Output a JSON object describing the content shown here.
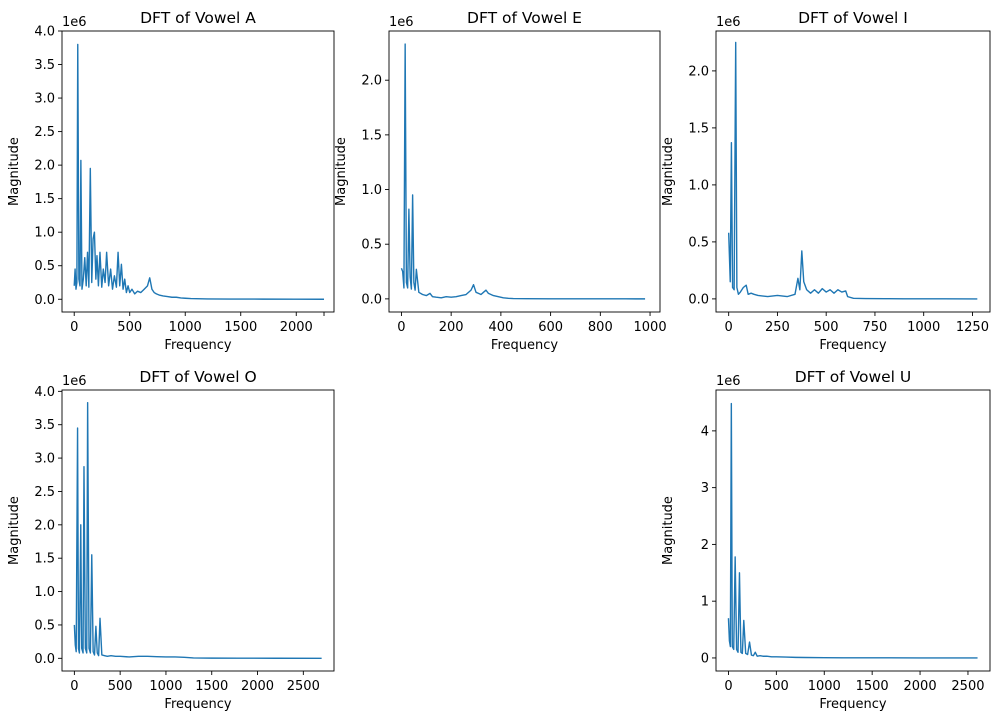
{
  "figure": {
    "background": "#ffffff",
    "line_color": "#1f77b4"
  },
  "chart_data": [
    {
      "type": "line",
      "title": "DFT of Vowel A",
      "xlabel": "Frequency",
      "ylabel": "Magnitude",
      "y_offset_label": "1e6",
      "xlim": [
        -110,
        2340
      ],
      "ylim": [
        -190000,
        4000000
      ],
      "xticks": [
        0,
        500,
        1000,
        1500,
        2000,
        2250
      ],
      "xtick_labels": [
        "0",
        "500",
        "1000",
        "1500",
        "2000",
        ""
      ],
      "yticks": [
        0,
        500000,
        1000000,
        1500000,
        2000000,
        2500000,
        3000000,
        3500000,
        4000000
      ],
      "ytick_labels": [
        "0.0",
        "0.5",
        "1.0",
        "1.5",
        "2.0",
        "2.5",
        "3.0",
        "3.5",
        "4.0"
      ],
      "grid": false,
      "series": [
        {
          "x": [
            0,
            8,
            16,
            24,
            32,
            42,
            52,
            60,
            70,
            82,
            95,
            108,
            120,
            132,
            145,
            158,
            170,
            182,
            195,
            205,
            218,
            232,
            248,
            262,
            278,
            292,
            310,
            328,
            345,
            362,
            380,
            395,
            410,
            425,
            440,
            455,
            470,
            485,
            500,
            520,
            545,
            570,
            600,
            630,
            660,
            680,
            700,
            720,
            740,
            770,
            800,
            840,
            880,
            920,
            960,
            1000,
            1050,
            1100,
            1200,
            1400,
            1700,
            2000,
            2250
          ],
          "y": [
            200000,
            450000,
            150000,
            250000,
            3800000,
            300000,
            200000,
            2070000,
            150000,
            300000,
            620000,
            200000,
            700000,
            180000,
            1950000,
            250000,
            900000,
            1000000,
            300000,
            650000,
            200000,
            700000,
            180000,
            450000,
            250000,
            700000,
            200000,
            450000,
            150000,
            350000,
            180000,
            700000,
            200000,
            520000,
            150000,
            300000,
            100000,
            200000,
            100000,
            150000,
            80000,
            120000,
            100000,
            150000,
            200000,
            320000,
            150000,
            100000,
            80000,
            60000,
            50000,
            40000,
            30000,
            30000,
            20000,
            15000,
            10000,
            8000,
            5000,
            3000,
            2000,
            1000,
            0
          ]
        }
      ]
    },
    {
      "type": "line",
      "title": "DFT of Vowel E",
      "xlabel": "Frequency",
      "ylabel": "Magnitude",
      "y_offset_label": "1e6",
      "xlim": [
        -50,
        1040
      ],
      "ylim": [
        -120000,
        2450000
      ],
      "xticks": [
        0,
        200,
        400,
        600,
        800,
        1000
      ],
      "xtick_labels": [
        "0",
        "200",
        "400",
        "600",
        "800",
        "1000"
      ],
      "yticks": [
        0,
        500000,
        1000000,
        1500000,
        2000000
      ],
      "ytick_labels": [
        "0.0",
        "0.5",
        "1.0",
        "1.5",
        "2.0"
      ],
      "grid": false,
      "series": [
        {
          "x": [
            0,
            5,
            10,
            15,
            20,
            25,
            30,
            35,
            40,
            45,
            50,
            55,
            60,
            70,
            85,
            100,
            115,
            125,
            140,
            160,
            180,
            200,
            220,
            240,
            260,
            280,
            290,
            300,
            310,
            320,
            330,
            340,
            350,
            370,
            390,
            410,
            430,
            450,
            500,
            600,
            700,
            800,
            900,
            980
          ],
          "y": [
            280000,
            250000,
            100000,
            2330000,
            150000,
            100000,
            820000,
            200000,
            90000,
            950000,
            150000,
            80000,
            270000,
            60000,
            40000,
            30000,
            50000,
            20000,
            15000,
            10000,
            20000,
            15000,
            20000,
            30000,
            40000,
            80000,
            130000,
            60000,
            50000,
            40000,
            60000,
            80000,
            50000,
            30000,
            20000,
            10000,
            5000,
            3000,
            2000,
            1000,
            800,
            500,
            200,
            0
          ]
        }
      ]
    },
    {
      "type": "line",
      "title": "DFT of Vowel I",
      "xlabel": "Frequency",
      "ylabel": "Magnitude",
      "y_offset_label": "1e6",
      "xlim": [
        -65,
        1340
      ],
      "ylim": [
        -115000,
        2350000
      ],
      "xticks": [
        0,
        250,
        500,
        750,
        1000,
        1250
      ],
      "xtick_labels": [
        "0",
        "250",
        "500",
        "750",
        "1000",
        "1250"
      ],
      "yticks": [
        0,
        500000,
        1000000,
        1500000,
        2000000
      ],
      "ytick_labels": [
        "0.0",
        "0.5",
        "1.0",
        "1.5",
        "2.0"
      ],
      "grid": false,
      "series": [
        {
          "x": [
            0,
            8,
            14,
            20,
            28,
            36,
            42,
            50,
            60,
            75,
            90,
            100,
            115,
            130,
            150,
            200,
            250,
            300,
            340,
            355,
            365,
            375,
            385,
            400,
            420,
            440,
            460,
            480,
            500,
            520,
            540,
            560,
            580,
            600,
            610,
            640,
            700,
            800,
            900,
            1000,
            1100,
            1275
          ],
          "y": [
            580000,
            150000,
            1370000,
            100000,
            80000,
            2250000,
            100000,
            40000,
            60000,
            100000,
            120000,
            40000,
            50000,
            40000,
            30000,
            20000,
            30000,
            20000,
            40000,
            180000,
            80000,
            420000,
            150000,
            80000,
            50000,
            80000,
            50000,
            90000,
            60000,
            80000,
            50000,
            80000,
            60000,
            70000,
            20000,
            5000,
            3000,
            2000,
            1000,
            800,
            500,
            0
          ]
        }
      ]
    },
    {
      "type": "line",
      "title": "DFT of Vowel O",
      "xlabel": "Frequency",
      "ylabel": "Magnitude",
      "y_offset_label": "1e6",
      "xlim": [
        -135,
        2835
      ],
      "ylim": [
        -190000,
        4020000
      ],
      "xticks": [
        0,
        500,
        1000,
        1500,
        2000,
        2500
      ],
      "xtick_labels": [
        "0",
        "500",
        "1000",
        "1500",
        "2000",
        "2500"
      ],
      "yticks": [
        0,
        500000,
        1000000,
        1500000,
        2000000,
        2500000,
        3000000,
        3500000,
        4000000
      ],
      "ytick_labels": [
        "0.0",
        "0.5",
        "1.0",
        "1.5",
        "2.0",
        "2.5",
        "3.0",
        "3.5",
        "4.0"
      ],
      "grid": false,
      "series": [
        {
          "x": [
            0,
            10,
            20,
            35,
            45,
            55,
            70,
            80,
            95,
            105,
            120,
            135,
            145,
            160,
            175,
            190,
            205,
            220,
            235,
            250,
            265,
            280,
            300,
            330,
            360,
            400,
            450,
            500,
            600,
            700,
            800,
            900,
            1000,
            1100,
            1200,
            1300,
            1500,
            1800,
            2200,
            2700
          ],
          "y": [
            500000,
            200000,
            100000,
            3450000,
            150000,
            80000,
            2000000,
            150000,
            80000,
            2870000,
            150000,
            80000,
            3830000,
            150000,
            80000,
            1550000,
            100000,
            50000,
            480000,
            80000,
            40000,
            600000,
            50000,
            40000,
            30000,
            40000,
            30000,
            30000,
            20000,
            30000,
            30000,
            25000,
            20000,
            20000,
            15000,
            5000,
            3000,
            2000,
            1000,
            0
          ]
        }
      ]
    },
    {
      "type": "line",
      "title": "DFT of Vowel U",
      "xlabel": "Frequency",
      "ylabel": "Magnitude",
      "y_offset_label": "1e6",
      "xlim": [
        -130,
        2730
      ],
      "ylim": [
        -230000,
        4720000
      ],
      "xticks": [
        0,
        500,
        1000,
        1500,
        2000,
        2500
      ],
      "xtick_labels": [
        "0",
        "500",
        "1000",
        "1500",
        "2000",
        "2500"
      ],
      "yticks": [
        0,
        1000000,
        2000000,
        3000000,
        4000000
      ],
      "ytick_labels": [
        "0",
        "1",
        "2",
        "3",
        "4"
      ],
      "grid": false,
      "series": [
        {
          "x": [
            0,
            10,
            20,
            30,
            40,
            55,
            70,
            85,
            100,
            115,
            130,
            145,
            160,
            180,
            200,
            220,
            240,
            260,
            280,
            300,
            330,
            360,
            400,
            450,
            500,
            600,
            700,
            800,
            1000,
            1200,
            1500,
            2000,
            2600
          ],
          "y": [
            700000,
            300000,
            200000,
            4480000,
            200000,
            150000,
            1780000,
            150000,
            100000,
            1500000,
            100000,
            80000,
            660000,
            80000,
            60000,
            280000,
            50000,
            40000,
            100000,
            30000,
            40000,
            30000,
            30000,
            20000,
            20000,
            15000,
            10000,
            8000,
            5000,
            3000,
            2000,
            1000,
            0
          ]
        }
      ]
    }
  ]
}
